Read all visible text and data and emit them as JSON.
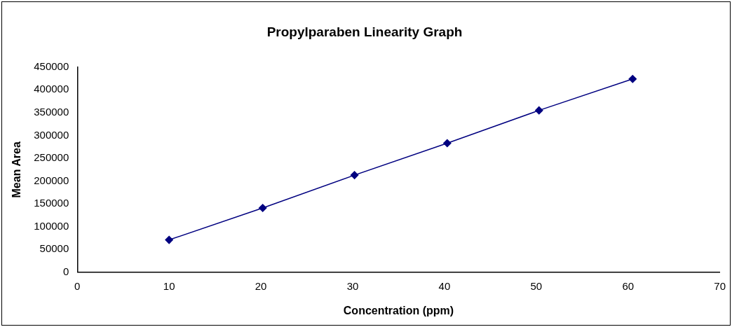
{
  "chart_data": {
    "type": "line",
    "title": "Propylparaben Linearity Graph",
    "xlabel": "Concentration (ppm)",
    "ylabel": "Mean Area",
    "x": [
      10,
      20.2,
      30.2,
      40.3,
      50.3,
      60.5
    ],
    "series": [
      {
        "color": "#000080",
        "values": [
          71000,
          141000,
          213000,
          283000,
          355000,
          424000
        ]
      }
    ],
    "xlim": [
      0,
      70
    ],
    "xticks": [
      0,
      10,
      20,
      30,
      40,
      50,
      60,
      70
    ],
    "ylim": [
      0,
      450000
    ],
    "yticks": [
      0,
      50000,
      100000,
      150000,
      200000,
      250000,
      300000,
      350000,
      400000,
      450000
    ],
    "marker": "diamond",
    "line_style": "solid",
    "grid": false,
    "legend": false
  }
}
